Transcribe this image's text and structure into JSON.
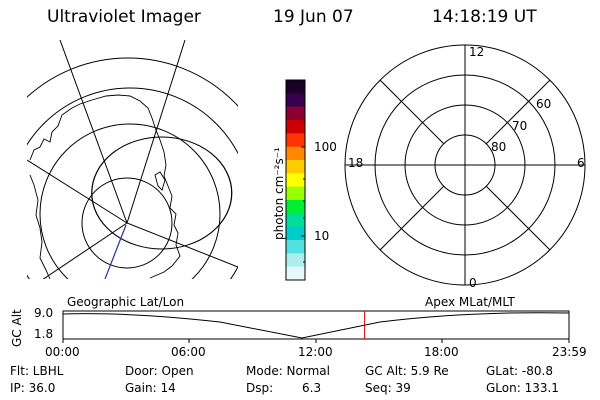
{
  "header": {
    "title": "Ultraviolet Imager",
    "date": "19 Jun 07",
    "time": "14:18:19 UT"
  },
  "colorbar": {
    "unit": "photon cm⁻²s⁻¹",
    "scale": "log",
    "ticks": [
      {
        "label": "100",
        "value": 100
      },
      {
        "label": "10",
        "value": 10
      }
    ],
    "colors": [
      "#1a0026",
      "#3a0050",
      "#8a0030",
      "#cc0000",
      "#ff3300",
      "#ff8800",
      "#ffcc00",
      "#ffff00",
      "#99ff00",
      "#00ee33",
      "#00dd99",
      "#00cccc",
      "#55e0e0",
      "#aaeeee",
      "#e8f8f8"
    ]
  },
  "geographic_map": {
    "label": "Geographic Lat/Lon"
  },
  "polar_map": {
    "label": "Apex MLat/MLT",
    "mlt_labels": {
      "top": "12",
      "bottom": "0",
      "left": "18",
      "right": "6"
    },
    "mlat_labels": [
      "60",
      "70",
      "80"
    ]
  },
  "altitude_plot": {
    "ylabel": "GC Alt",
    "y_ticks": [
      "9.0",
      "1.8"
    ],
    "x_ticks": [
      "00:00",
      "06:00",
      "12:00",
      "18:00",
      "23:59"
    ],
    "current_time_hours": 14.305,
    "marker_color": "#dd0000"
  },
  "info": {
    "row1": [
      "Flt: LBHL",
      "Door: Open",
      "Mode: Normal",
      "GC Alt: 5.9 Re",
      "GLat: -80.8"
    ],
    "row2": [
      "IP: 36.0",
      "Gain: 14",
      "Dsp:",
      "6.3",
      "Seq: 39",
      "GLon: 133.1"
    ]
  }
}
